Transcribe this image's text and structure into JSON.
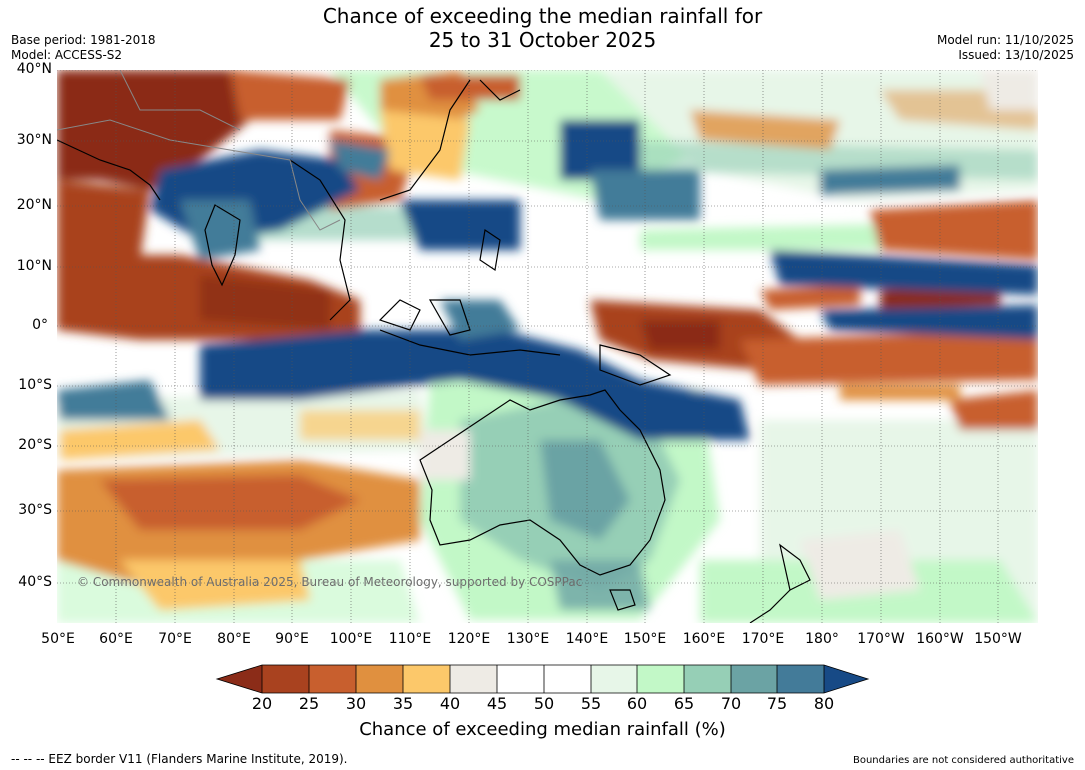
{
  "header": {
    "title_line1": "Chance of exceeding the median rainfall for",
    "title_line2": "25 to 31 October 2025",
    "base_period": "Base period: 1981-2018",
    "model": "Model: ACCESS-S2",
    "model_run": "Model run: 11/10/2025",
    "issued": "Issued: 13/10/2025"
  },
  "map": {
    "lat_labels": [
      "40°N",
      "30°N",
      "20°N",
      "10°N",
      "0°",
      "10°S",
      "20°S",
      "30°S",
      "40°S"
    ],
    "lon_labels": [
      "50°E",
      "60°E",
      "70°E",
      "80°E",
      "90°E",
      "100°E",
      "110°E",
      "120°E",
      "130°E",
      "140°E",
      "150°E",
      "160°E",
      "170°E",
      "180°",
      "170°W",
      "160°W",
      "150°W"
    ],
    "copyright": "© Commonwealth of Australia 2025, Bureau of Meteorology, supported by COSPPac"
  },
  "colorbar": {
    "ticks": [
      "20",
      "25",
      "30",
      "35",
      "40",
      "45",
      "50",
      "55",
      "60",
      "65",
      "70",
      "75",
      "80"
    ],
    "colors": [
      "#8b2c18",
      "#a9421f",
      "#c85f2e",
      "#e0903f",
      "#fcc86a",
      "#eeebe5",
      "#ffffff",
      "#ffffff",
      "#e7f6e8",
      "#c2f8c7",
      "#96cfb6",
      "#6ba3a4",
      "#437b99",
      "#174a86"
    ],
    "label": "Chance of exceeding median rainfall (%)"
  },
  "footer": {
    "eez_note": "--  --  -- EEZ border V11 (Flanders Marine Institute, 2019).",
    "disclaimer": "Boundaries are not considered authoritative"
  }
}
